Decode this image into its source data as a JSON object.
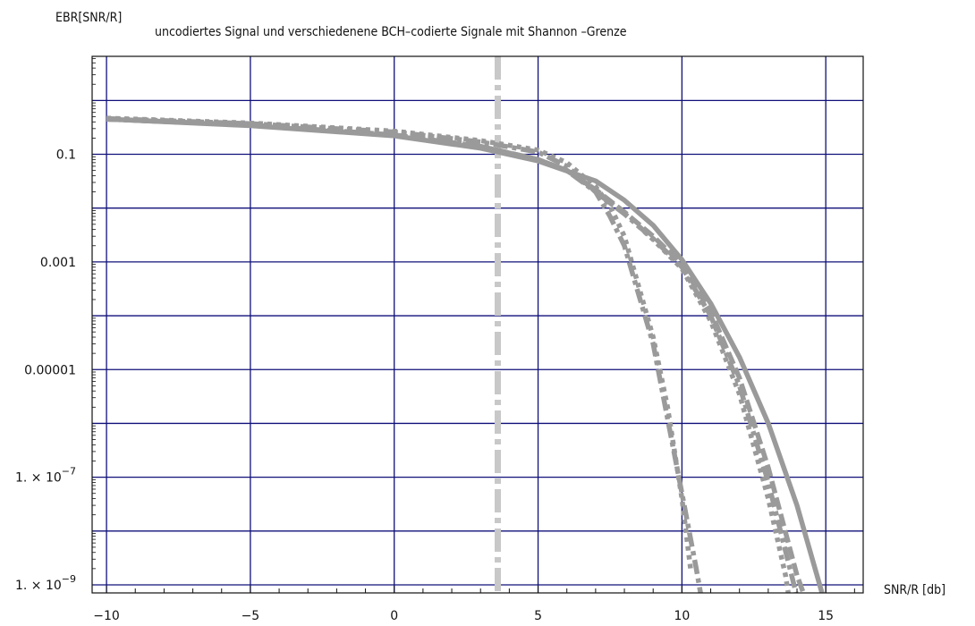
{
  "chart_data": {
    "type": "line",
    "title": "uncodiertes Signal und verschiedenene BCH–codierte Signale mit Shannon –Grenze",
    "ylabel": "EBR[SNR/R]",
    "xlabel": "SNR/R [db]",
    "xlim": [
      -10.5,
      16.3
    ],
    "y_scale": "log",
    "ylim_log10": [
      -9.15,
      0.82
    ],
    "x_ticks": [
      -10,
      -5,
      0,
      5,
      10,
      15
    ],
    "x_tick_labels": [
      "−10",
      "−5",
      "0",
      "5",
      "10",
      "15"
    ],
    "y_ticks_log10": [
      -1,
      -3,
      -5,
      -7,
      -9
    ],
    "y_tick_labels": [
      {
        "mant": "0.1",
        "exp": ""
      },
      {
        "mant": "0.001",
        "exp": ""
      },
      {
        "mant": "0.00001",
        "exp": ""
      },
      {
        "mant": "1. × 10",
        "exp": "−7"
      },
      {
        "mant": "1. × 10",
        "exp": "−9"
      }
    ],
    "grid": true,
    "shannon_limit_x": 3.6,
    "series": [
      {
        "style": "solid",
        "x": [
          -10,
          -5,
          0,
          3,
          5,
          7,
          8,
          9,
          10,
          11,
          12,
          13,
          14,
          15
        ],
        "y": [
          0.45,
          0.34,
          0.22,
          0.13,
          0.075,
          0.032,
          0.014,
          0.0048,
          0.0011,
          0.00017,
          1.7e-05,
          1e-06,
          3e-08,
          4e-10
        ]
      },
      {
        "style": "dashdot",
        "x": [
          -10,
          -5,
          0,
          3,
          5,
          6,
          7,
          7.5,
          8,
          9,
          10,
          10.5,
          11
        ],
        "y": [
          0.46,
          0.37,
          0.26,
          0.17,
          0.11,
          0.06,
          0.02,
          0.007,
          0.002,
          3e-05,
          5e-08,
          2e-09,
          6e-11
        ]
      },
      {
        "style": "dotted",
        "x": [
          -10,
          -5,
          0,
          3,
          5,
          6,
          7,
          7.5,
          8,
          9,
          9.5,
          10,
          10.3
        ],
        "y": [
          0.47,
          0.38,
          0.27,
          0.18,
          0.12,
          0.07,
          0.025,
          0.011,
          0.003,
          4e-05,
          2e-06,
          4e-08,
          2e-09
        ]
      },
      {
        "style": "dashed",
        "x": [
          -10,
          -5,
          0,
          3,
          5,
          6,
          7,
          8,
          9,
          10,
          11,
          12,
          13,
          14,
          15
        ],
        "y": [
          0.45,
          0.35,
          0.23,
          0.14,
          0.08,
          0.05,
          0.022,
          0.0085,
          0.003,
          0.0009,
          0.00012,
          7e-06,
          1.5e-07,
          1.5e-09,
          5e-11
        ]
      },
      {
        "style": "dashdot",
        "x": [
          -10,
          -5,
          0,
          3,
          5,
          6,
          7,
          8,
          9,
          10,
          11,
          12,
          13,
          14,
          14.5
        ],
        "y": [
          0.45,
          0.35,
          0.23,
          0.14,
          0.08,
          0.05,
          0.02,
          0.0078,
          0.0027,
          0.0008,
          0.0001,
          5e-06,
          8e-08,
          6e-10,
          5e-11
        ]
      },
      {
        "style": "dotted",
        "x": [
          -10,
          -5,
          0,
          3,
          5,
          6,
          7,
          8,
          9,
          10,
          11,
          12,
          13,
          13.6,
          14
        ],
        "y": [
          0.45,
          0.35,
          0.23,
          0.14,
          0.08,
          0.05,
          0.021,
          0.008,
          0.0026,
          0.00075,
          8e-05,
          3.5e-06,
          4e-08,
          1.5e-09,
          6e-11
        ]
      }
    ]
  }
}
